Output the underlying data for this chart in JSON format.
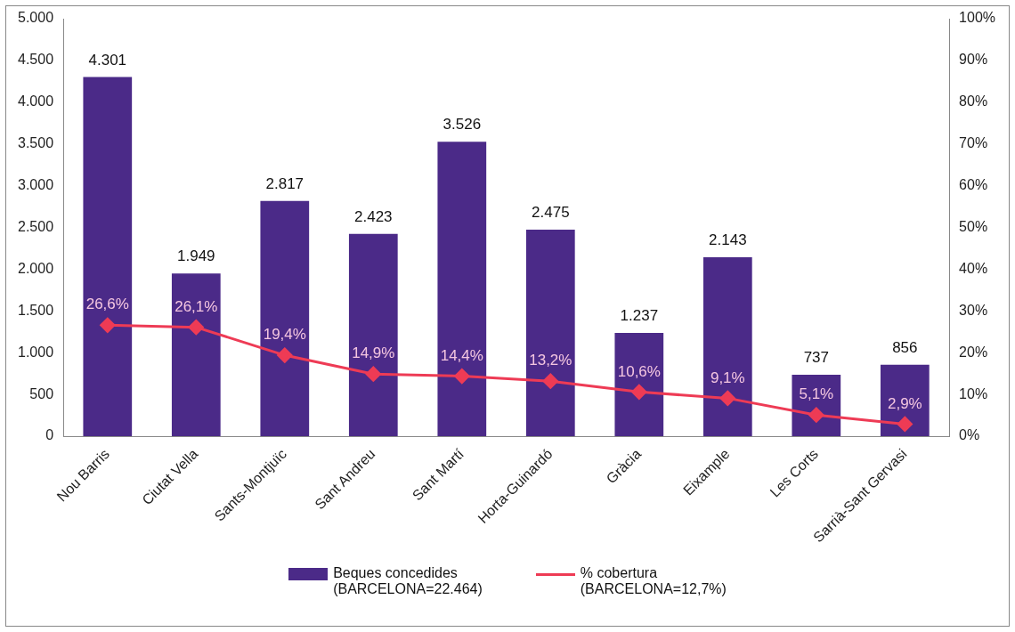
{
  "chart_data": {
    "type": "bar",
    "categories": [
      "Nou Barris",
      "Ciutat Vella",
      "Sants-Montjuïc",
      "Sant Andreu",
      "Sant Martí",
      "Horta-Guinardó",
      "Gràcia",
      "Eixample",
      "Les Corts",
      "Sarrià-Sant Gervasi"
    ],
    "series": [
      {
        "name": "Beques concedides\n(BARCELONA=22.464)",
        "color": "#4b2a88",
        "values": [
          4301,
          1949,
          2817,
          2423,
          3526,
          2475,
          1237,
          2143,
          737,
          856
        ],
        "value_labels": [
          "4.301",
          "1.949",
          "2.817",
          "2.423",
          "3.526",
          "2.475",
          "1.237",
          "2.143",
          "737",
          "856"
        ]
      },
      {
        "name": "% cobertura\n(BARCELONA=12,7%)",
        "type": "line",
        "axis": "y2",
        "color": "#ee3b55",
        "values": [
          26.6,
          26.1,
          19.4,
          14.9,
          14.4,
          13.2,
          10.6,
          9.1,
          5.1,
          2.9
        ],
        "value_labels": [
          "26,6%",
          "26,1%",
          "19,4%",
          "14,9%",
          "14,4%",
          "13,2%",
          "10,6%",
          "9,1%",
          "5,1%",
          "2,9%"
        ]
      }
    ],
    "ylim": [
      0,
      5000
    ],
    "yticks": [
      {
        "value": 0,
        "label": "0"
      },
      {
        "value": 500,
        "label": "500"
      },
      {
        "value": 1000,
        "label": "1.000"
      },
      {
        "value": 1500,
        "label": "1.500"
      },
      {
        "value": 2000,
        "label": "2.000"
      },
      {
        "value": 2500,
        "label": "2.500"
      },
      {
        "value": 3000,
        "label": "3.000"
      },
      {
        "value": 3500,
        "label": "3.500"
      },
      {
        "value": 4000,
        "label": "4.000"
      },
      {
        "value": 4500,
        "label": "4.500"
      },
      {
        "value": 5000,
        "label": "5.000"
      }
    ],
    "y2lim": [
      0,
      100
    ],
    "y2ticks": [
      {
        "value": 0,
        "label": "0%"
      },
      {
        "value": 10,
        "label": "10%"
      },
      {
        "value": 20,
        "label": "20%"
      },
      {
        "value": 30,
        "label": "30%"
      },
      {
        "value": 40,
        "label": "40%"
      },
      {
        "value": 50,
        "label": "50%"
      },
      {
        "value": 60,
        "label": "60%"
      },
      {
        "value": 70,
        "label": "70%"
      },
      {
        "value": 80,
        "label": "80%"
      },
      {
        "value": 90,
        "label": "90%"
      },
      {
        "value": 100,
        "label": "100%"
      }
    ],
    "grid": false,
    "legend": "bottom",
    "marker": "diamond",
    "line_style": "solid"
  }
}
